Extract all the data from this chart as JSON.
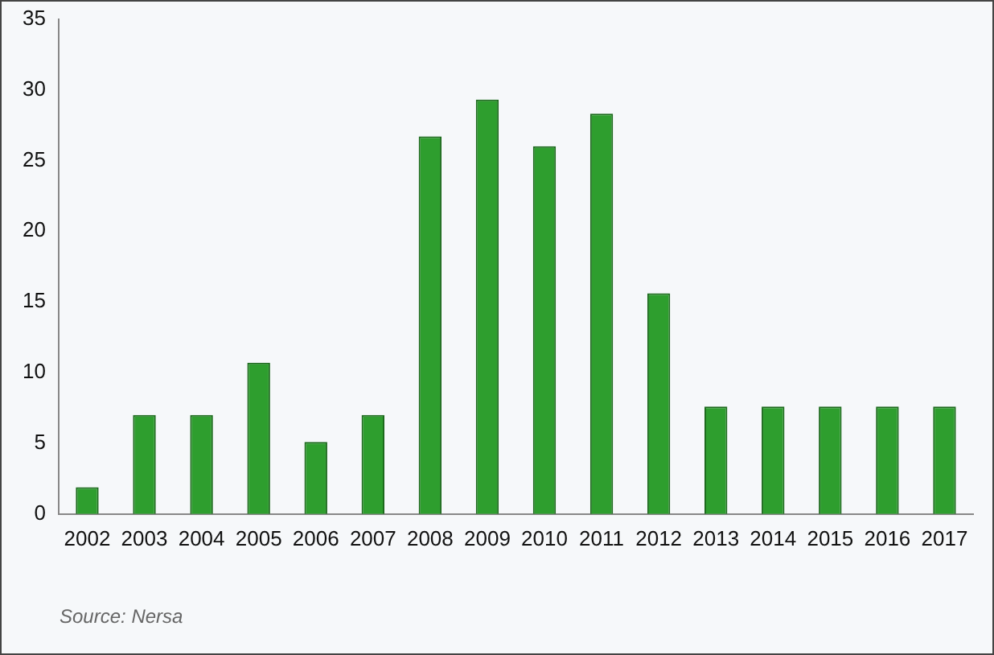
{
  "chart_data": {
    "type": "bar",
    "categories": [
      "2002",
      "2003",
      "2004",
      "2005",
      "2006",
      "2007",
      "2008",
      "2009",
      "2010",
      "2011",
      "2012",
      "2013",
      "2014",
      "2015",
      "2016",
      "2017"
    ],
    "values": [
      1.9,
      7,
      7,
      10.7,
      5.1,
      7,
      26.7,
      29.3,
      26,
      28.3,
      15.6,
      7.6,
      7.6,
      7.6,
      7.6,
      7.6
    ],
    "color": "#2e9e2e",
    "ylim": [
      0,
      35
    ],
    "yticks": [
      0,
      5,
      10,
      15,
      20,
      25,
      30,
      35
    ],
    "grid": false,
    "legend": false,
    "annotations": [
      "Source: Nersa"
    ]
  }
}
